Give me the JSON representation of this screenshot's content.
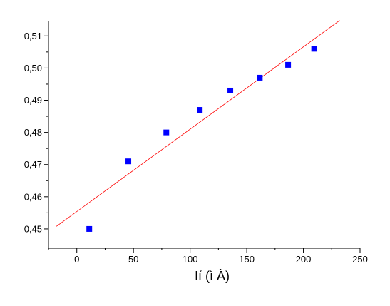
{
  "chart_data": {
    "type": "scatter",
    "title": "",
    "xlabel": "Ií (ì À)",
    "ylabel": "",
    "xlim": [
      -25,
      250
    ],
    "ylim": [
      0.444,
      0.5145
    ],
    "x_ticks": [
      0,
      50,
      100,
      150,
      200,
      250
    ],
    "x_tick_labels": [
      "0",
      "50",
      "100",
      "150",
      "200",
      "250"
    ],
    "y_ticks": [
      0.45,
      0.46,
      0.47,
      0.48,
      0.49,
      0.5,
      0.51
    ],
    "y_tick_labels": [
      "0,45",
      "0,46",
      "0,47",
      "0,48",
      "0,49",
      "0,50",
      "0,51"
    ],
    "grid": false,
    "series": [
      {
        "kind": "scatter",
        "marker": "square",
        "color": "#0000ff",
        "x": [
          11,
          45.5,
          79,
          108.5,
          135.5,
          161.5,
          186.5,
          209.5
        ],
        "y": [
          0.45,
          0.471,
          0.48,
          0.487,
          0.493,
          0.497,
          0.501,
          0.506
        ]
      },
      {
        "kind": "line",
        "color": "#ff0000",
        "x": [
          -18,
          232
        ],
        "y": [
          0.4508,
          0.5148
        ]
      }
    ]
  }
}
